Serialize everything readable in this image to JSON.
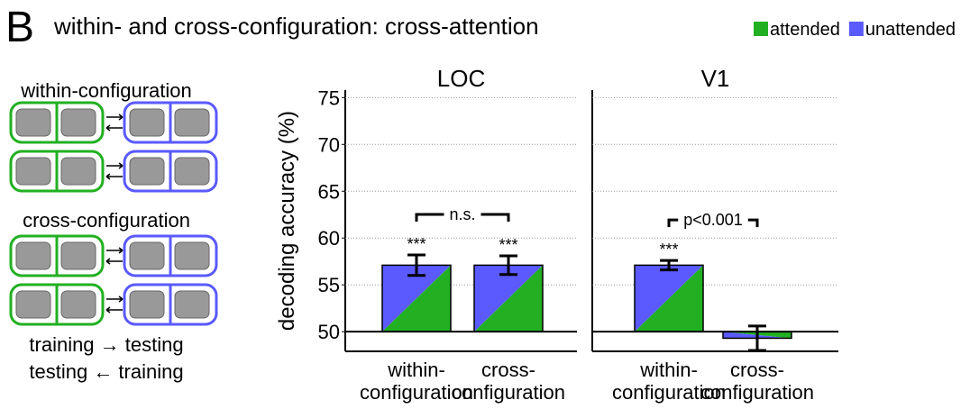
{
  "panel_label": "B",
  "title": "within- and cross-configuration: cross-attention",
  "legend": [
    {
      "name": "attended",
      "color": "#22b022"
    },
    {
      "name": "unattended",
      "color": "#5a5aff"
    }
  ],
  "diagram": {
    "within_label": "within-configuration",
    "cross_label": "cross-configuration",
    "line1": "training → testing",
    "line2": "testing ← training"
  },
  "chart_data": [
    {
      "type": "bar",
      "title": "LOC",
      "ylabel": "decoding accuracy (%)",
      "categories": [
        "within- configuration",
        "cross- configuration"
      ],
      "values": [
        57.1,
        57.1
      ],
      "errors": [
        1.1,
        1.0
      ],
      "annotations": [
        "***",
        "***"
      ],
      "comparison": "n.s.",
      "ylim": [
        47.9,
        75.8
      ],
      "yticks": [
        50,
        55,
        60,
        65,
        70,
        75
      ],
      "grid": true
    },
    {
      "type": "bar",
      "title": "V1",
      "categories": [
        "within- configuration",
        "cross- configuration"
      ],
      "values": [
        57.1,
        49.3
      ],
      "errors": [
        0.5,
        1.3
      ],
      "annotations": [
        "***"
      ],
      "comparison": "p<0.001",
      "ylim": [
        47.9,
        75.8
      ],
      "yticks": [
        50,
        55,
        60,
        65,
        70,
        75
      ],
      "grid": true
    }
  ]
}
